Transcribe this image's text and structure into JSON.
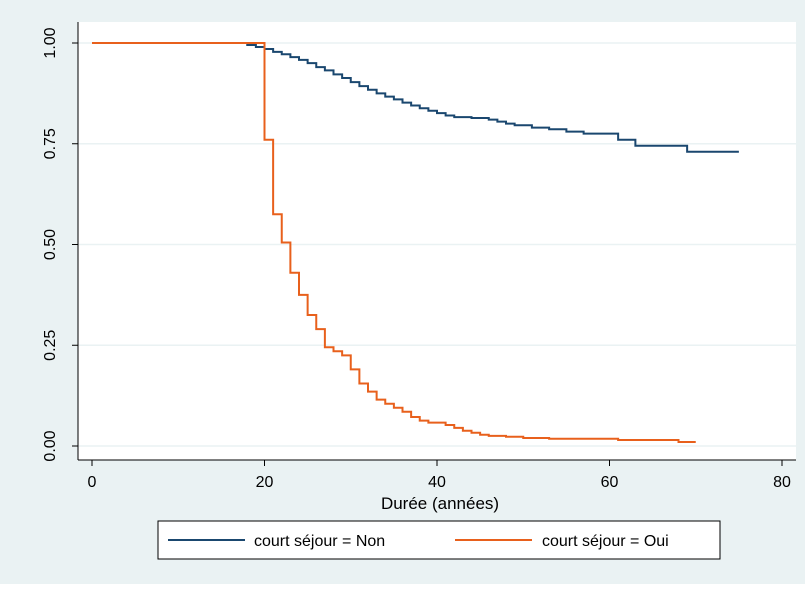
{
  "chart_data": {
    "type": "line",
    "title": "",
    "xlabel": "Durée (années)",
    "ylabel": "",
    "xlim": [
      0,
      80
    ],
    "ylim": [
      0,
      1
    ],
    "xticks": [
      0,
      20,
      40,
      60,
      80
    ],
    "yticks": [
      0,
      0.25,
      0.5,
      0.75,
      1
    ],
    "xtick_labels": [
      "0",
      "20",
      "40",
      "60",
      "80"
    ],
    "ytick_labels": [
      "0.00",
      "0.25",
      "0.50",
      "0.75",
      "1.00"
    ],
    "grid": true,
    "legend_position": "bottom",
    "colors": {
      "plot_background": "#ffffff",
      "outer_background": "#eaf2f3",
      "grid": "#eaf2f3"
    },
    "series": [
      {
        "name": "court séjour = Non",
        "color": "#1a476f",
        "step": true,
        "points": [
          [
            0,
            1.0
          ],
          [
            18,
            1.0
          ],
          [
            18,
            0.995
          ],
          [
            19,
            0.995
          ],
          [
            19,
            0.99
          ],
          [
            20,
            0.99
          ],
          [
            20,
            0.985
          ],
          [
            21,
            0.985
          ],
          [
            21,
            0.978
          ],
          [
            22,
            0.978
          ],
          [
            22,
            0.972
          ],
          [
            23,
            0.972
          ],
          [
            23,
            0.965
          ],
          [
            24,
            0.965
          ],
          [
            24,
            0.958
          ],
          [
            25,
            0.958
          ],
          [
            25,
            0.95
          ],
          [
            26,
            0.95
          ],
          [
            26,
            0.94
          ],
          [
            27,
            0.94
          ],
          [
            27,
            0.932
          ],
          [
            28,
            0.932
          ],
          [
            28,
            0.922
          ],
          [
            29,
            0.922
          ],
          [
            29,
            0.913
          ],
          [
            30,
            0.913
          ],
          [
            30,
            0.903
          ],
          [
            31,
            0.903
          ],
          [
            31,
            0.893
          ],
          [
            32,
            0.893
          ],
          [
            32,
            0.884
          ],
          [
            33,
            0.884
          ],
          [
            33,
            0.875
          ],
          [
            34,
            0.875
          ],
          [
            34,
            0.867
          ],
          [
            35,
            0.867
          ],
          [
            35,
            0.86
          ],
          [
            36,
            0.86
          ],
          [
            36,
            0.852
          ],
          [
            37,
            0.852
          ],
          [
            37,
            0.845
          ],
          [
            38,
            0.845
          ],
          [
            38,
            0.838
          ],
          [
            39,
            0.838
          ],
          [
            39,
            0.832
          ],
          [
            40,
            0.832
          ],
          [
            40,
            0.826
          ],
          [
            41,
            0.826
          ],
          [
            41,
            0.82
          ],
          [
            42,
            0.82
          ],
          [
            42,
            0.816
          ],
          [
            44,
            0.816
          ],
          [
            44,
            0.814
          ],
          [
            46,
            0.814
          ],
          [
            46,
            0.81
          ],
          [
            47,
            0.81
          ],
          [
            47,
            0.805
          ],
          [
            48,
            0.805
          ],
          [
            48,
            0.8
          ],
          [
            49,
            0.8
          ],
          [
            49,
            0.796
          ],
          [
            51,
            0.796
          ],
          [
            51,
            0.79
          ],
          [
            53,
            0.79
          ],
          [
            53,
            0.786
          ],
          [
            55,
            0.786
          ],
          [
            55,
            0.78
          ],
          [
            57,
            0.78
          ],
          [
            57,
            0.775
          ],
          [
            61,
            0.775
          ],
          [
            61,
            0.76
          ],
          [
            63,
            0.76
          ],
          [
            63,
            0.745
          ],
          [
            69,
            0.745
          ],
          [
            69,
            0.73
          ],
          [
            75,
            0.73
          ]
        ]
      },
      {
        "name": "court séjour = Oui",
        "color": "#e8601c",
        "step": true,
        "points": [
          [
            0,
            1.0
          ],
          [
            20,
            1.0
          ],
          [
            20,
            0.76
          ],
          [
            21,
            0.76
          ],
          [
            21,
            0.575
          ],
          [
            22,
            0.575
          ],
          [
            22,
            0.505
          ],
          [
            23,
            0.505
          ],
          [
            23,
            0.43
          ],
          [
            24,
            0.43
          ],
          [
            24,
            0.375
          ],
          [
            25,
            0.375
          ],
          [
            25,
            0.325
          ],
          [
            26,
            0.325
          ],
          [
            26,
            0.29
          ],
          [
            27,
            0.29
          ],
          [
            27,
            0.245
          ],
          [
            28,
            0.245
          ],
          [
            28,
            0.235
          ],
          [
            29,
            0.235
          ],
          [
            29,
            0.225
          ],
          [
            30,
            0.225
          ],
          [
            30,
            0.19
          ],
          [
            31,
            0.19
          ],
          [
            31,
            0.155
          ],
          [
            32,
            0.155
          ],
          [
            32,
            0.135
          ],
          [
            33,
            0.135
          ],
          [
            33,
            0.115
          ],
          [
            34,
            0.115
          ],
          [
            34,
            0.105
          ],
          [
            35,
            0.105
          ],
          [
            35,
            0.095
          ],
          [
            36,
            0.095
          ],
          [
            36,
            0.085
          ],
          [
            37,
            0.085
          ],
          [
            37,
            0.072
          ],
          [
            38,
            0.072
          ],
          [
            38,
            0.063
          ],
          [
            39,
            0.063
          ],
          [
            39,
            0.058
          ],
          [
            41,
            0.058
          ],
          [
            41,
            0.052
          ],
          [
            42,
            0.052
          ],
          [
            42,
            0.045
          ],
          [
            43,
            0.045
          ],
          [
            43,
            0.038
          ],
          [
            44,
            0.038
          ],
          [
            44,
            0.033
          ],
          [
            45,
            0.033
          ],
          [
            45,
            0.028
          ],
          [
            46,
            0.028
          ],
          [
            46,
            0.025
          ],
          [
            48,
            0.025
          ],
          [
            48,
            0.023
          ],
          [
            50,
            0.023
          ],
          [
            50,
            0.02
          ],
          [
            53,
            0.02
          ],
          [
            53,
            0.018
          ],
          [
            61,
            0.018
          ],
          [
            61,
            0.015
          ],
          [
            68,
            0.015
          ],
          [
            68,
            0.01
          ],
          [
            70,
            0.01
          ]
        ]
      }
    ]
  }
}
